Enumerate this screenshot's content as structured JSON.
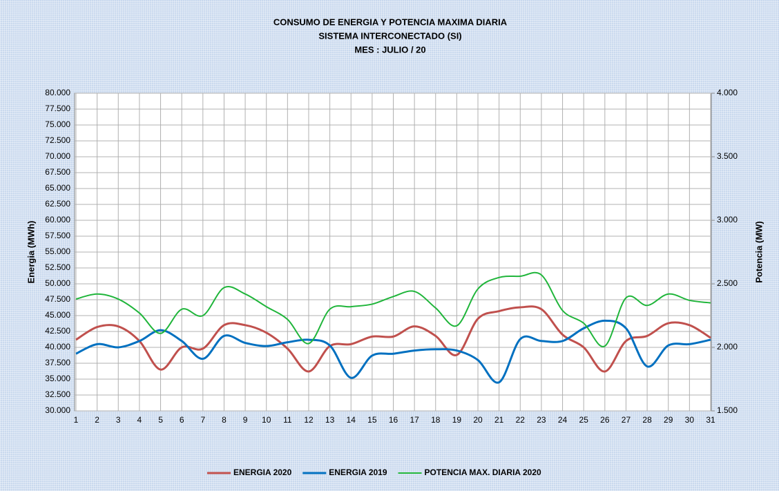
{
  "chart_data": {
    "type": "line",
    "title": [
      "CONSUMO DE ENERGIA Y POTENCIA MAXIMA DIARIA",
      "SISTEMA INTERCONECTADO (SI)",
      "MES :  JULIO / 20"
    ],
    "y_label": "Energia (MWh)",
    "y2_label": "Potencia (MW)",
    "categories": [
      "1",
      "2",
      "3",
      "4",
      "5",
      "6",
      "7",
      "8",
      "9",
      "10",
      "11",
      "12",
      "13",
      "14",
      "15",
      "16",
      "17",
      "18",
      "19",
      "20",
      "21",
      "22",
      "23",
      "24",
      "25",
      "26",
      "27",
      "28",
      "29",
      "30",
      "31"
    ],
    "ylim": [
      30000,
      80000
    ],
    "yticks": [
      {
        "value": 30000,
        "label": "30.000"
      },
      {
        "value": 32500,
        "label": "32.500"
      },
      {
        "value": 35000,
        "label": "35.000"
      },
      {
        "value": 37500,
        "label": "37.500"
      },
      {
        "value": 40000,
        "label": "40.000"
      },
      {
        "value": 42500,
        "label": "42.500"
      },
      {
        "value": 45000,
        "label": "45.000"
      },
      {
        "value": 47500,
        "label": "47.500"
      },
      {
        "value": 50000,
        "label": "50.000"
      },
      {
        "value": 52500,
        "label": "52.500"
      },
      {
        "value": 55000,
        "label": "55.000"
      },
      {
        "value": 57500,
        "label": "57.500"
      },
      {
        "value": 60000,
        "label": "60.000"
      },
      {
        "value": 62500,
        "label": "62.500"
      },
      {
        "value": 65000,
        "label": "65.000"
      },
      {
        "value": 67500,
        "label": "67.500"
      },
      {
        "value": 70000,
        "label": "70.000"
      },
      {
        "value": 72500,
        "label": "72.500"
      },
      {
        "value": 75000,
        "label": "75.000"
      },
      {
        "value": 77500,
        "label": "77.500"
      },
      {
        "value": 80000,
        "label": "80.000"
      }
    ],
    "y2lim": [
      1500,
      4000
    ],
    "y2ticks": [
      {
        "value": 1500,
        "label": "1.500"
      },
      {
        "value": 2000,
        "label": "2.000"
      },
      {
        "value": 2500,
        "label": "2.500"
      },
      {
        "value": 3000,
        "label": "3.000"
      },
      {
        "value": 3500,
        "label": "3.500"
      },
      {
        "value": 4000,
        "label": "4.000"
      }
    ],
    "grid": true,
    "legend": "bottom",
    "series": [
      {
        "name": "ENERGIA 2020",
        "color": "#c0504d",
        "values": [
          41200,
          43200,
          43300,
          41000,
          36500,
          40000,
          39800,
          43500,
          43500,
          42300,
          39800,
          36200,
          40200,
          40500,
          41700,
          41700,
          43300,
          41800,
          38800,
          44500,
          45700,
          46300,
          46000,
          42000,
          40000,
          36200,
          41000,
          41800,
          43800,
          43500,
          41500
        ]
      },
      {
        "name": "ENERGIA 2019",
        "color": "#0070c0",
        "values": [
          39000,
          40500,
          40000,
          41000,
          42700,
          41000,
          38200,
          41800,
          40700,
          40200,
          40800,
          41200,
          40300,
          35200,
          38700,
          39000,
          39500,
          39700,
          39500,
          38000,
          34500,
          41300,
          41000,
          41000,
          43000,
          44200,
          43000,
          37000,
          40300,
          40500,
          41200
        ]
      },
      {
        "name": "POTENCIA MAX. DIARIA 2020",
        "color": "#1fb53a",
        "axis": "y2",
        "values": [
          2380,
          2420,
          2380,
          2270,
          2110,
          2300,
          2250,
          2470,
          2420,
          2320,
          2220,
          2030,
          2300,
          2320,
          2340,
          2400,
          2440,
          2310,
          2170,
          2460,
          2550,
          2560,
          2570,
          2290,
          2190,
          2010,
          2390,
          2330,
          2420,
          2370,
          2350
        ]
      }
    ]
  }
}
